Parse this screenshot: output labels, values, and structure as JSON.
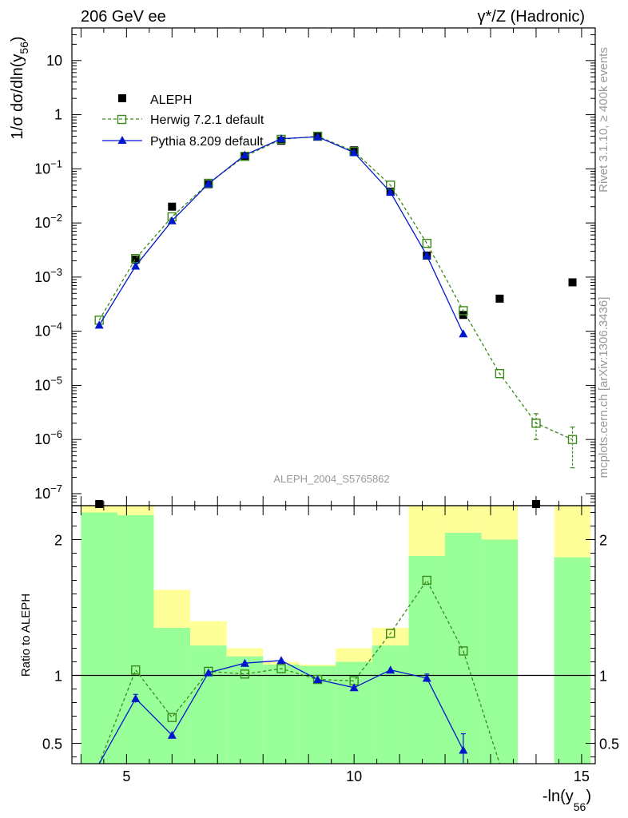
{
  "header": {
    "left_title": "206 GeV ee",
    "right_title": "γ*/Z (Hadronic)"
  },
  "side_labels": {
    "rivet": "Rivet 3.1.10, ≥ 400k events",
    "mcplots": "mcplots.cern.ch [arXiv:1306.3436]"
  },
  "colors": {
    "aleph": "#000000",
    "herwig": "#3a8a1a",
    "pythia": "#0018cc",
    "band_outer": "#ffff99",
    "band_inner": "#99ff99",
    "watermark": "#999999"
  },
  "chart_data": [
    {
      "type": "scatter",
      "panel": "main",
      "ylabel": "1/σ  dσ/dln(y56)",
      "ylabel_parts": {
        "main": "1/σ  dσ/dln(y",
        "sub": "56",
        "close": ")"
      },
      "yscale": "log",
      "ylim": [
        6e-08,
        40
      ],
      "xlim": [
        3.8,
        15.3
      ],
      "y_tick_labels": [
        {
          "value": 10,
          "label": "10"
        },
        {
          "value": 1,
          "label": "1"
        },
        {
          "value": 0.1,
          "base": "10",
          "exp": "−1"
        },
        {
          "value": 0.01,
          "base": "10",
          "exp": "−2"
        },
        {
          "value": 0.001,
          "base": "10",
          "exp": "−3"
        },
        {
          "value": 0.0001,
          "base": "10",
          "exp": "−4"
        },
        {
          "value": 1e-05,
          "base": "10",
          "exp": "−5"
        },
        {
          "value": 1e-06,
          "base": "10",
          "exp": "−6"
        },
        {
          "value": 1e-07,
          "base": "10",
          "exp": "−7"
        }
      ],
      "watermark": "ALEPH_2004_S5765862",
      "legend_position": "top-left",
      "series": [
        {
          "name": "ALEPH",
          "style": "data",
          "x": [
            4.4,
            5.2,
            6.0,
            6.8,
            7.6,
            8.4,
            9.2,
            10.0,
            10.8,
            11.6,
            12.4,
            13.2,
            14.0,
            14.8
          ],
          "y": [
            6e-08,
            0.0021,
            0.02,
            0.052,
            0.17,
            0.33,
            0.4,
            0.22,
            0.038,
            0.0025,
            0.0002,
            0.0004,
            6e-08,
            0.0008
          ]
        },
        {
          "name": "Herwig 7.2.1 default",
          "style": "herwig",
          "x": [
            4.4,
            5.2,
            6.0,
            6.8,
            7.6,
            8.4,
            9.2,
            10.0,
            10.8,
            11.6,
            12.4,
            13.2,
            14.0,
            14.8
          ],
          "y": [
            0.00016,
            0.0022,
            0.013,
            0.054,
            0.17,
            0.35,
            0.4,
            0.21,
            0.05,
            0.0042,
            0.00024,
            1.65e-05,
            2e-06,
            1e-06
          ],
          "err_lo": [
            0,
            0,
            0,
            0,
            0,
            0,
            0,
            0,
            0,
            0,
            0,
            0,
            1e-06,
            7e-07
          ],
          "err_hi": [
            0,
            0,
            0,
            0,
            0,
            0,
            0,
            0,
            0,
            0,
            0,
            0,
            1e-06,
            7e-07
          ]
        },
        {
          "name": "Pythia 8.209 default",
          "style": "pythia",
          "x": [
            4.4,
            5.2,
            6.0,
            6.8,
            7.6,
            8.4,
            9.2,
            10.0,
            10.8,
            11.6,
            12.4
          ],
          "y": [
            0.00013,
            0.0016,
            0.011,
            0.053,
            0.18,
            0.36,
            0.39,
            0.2,
            0.037,
            0.0025,
            9e-05
          ]
        }
      ]
    },
    {
      "type": "line",
      "panel": "ratio",
      "ylabel": "Ratio to ALEPH",
      "xlabel": "-ln(y56)",
      "xlabel_parts": {
        "main": "-ln(y",
        "sub": "56",
        "close": ")"
      },
      "xlim": [
        3.8,
        15.3
      ],
      "ylim": [
        0.35,
        2.25
      ],
      "x_tick_labels": [
        {
          "value": 5,
          "label": "5"
        },
        {
          "value": 10,
          "label": "10"
        },
        {
          "value": 15,
          "label": "15"
        }
      ],
      "y_tick_labels": [
        {
          "value": 2,
          "label": "2"
        },
        {
          "value": 1,
          "label": "1"
        },
        {
          "value": 0.5,
          "label": "0.5"
        }
      ],
      "bands": {
        "edges": [
          4.0,
          4.8,
          5.6,
          6.4,
          7.2,
          8.0,
          8.8,
          9.6,
          10.4,
          11.2,
          12.0,
          12.8,
          13.6,
          14.4,
          15.2
        ],
        "outer_lo": [
          0.35,
          0.35,
          0.43,
          0.79,
          0.89,
          0.94,
          0.94,
          0.88,
          0.78,
          0.35,
          0.35,
          0.35,
          null,
          0.35
        ],
        "outer_hi": [
          2.25,
          2.25,
          1.63,
          1.4,
          1.2,
          1.1,
          1.08,
          1.2,
          1.35,
          2.25,
          2.25,
          2.25,
          null,
          2.25
        ],
        "inner_lo": [
          0.35,
          0.35,
          0.35,
          0.35,
          0.35,
          0.35,
          0.35,
          0.35,
          0.35,
          0.35,
          0.35,
          0.35,
          null,
          0.35
        ],
        "inner_hi": [
          2.2,
          2.18,
          1.35,
          1.22,
          1.14,
          1.08,
          1.07,
          1.1,
          1.22,
          1.88,
          2.05,
          2.0,
          null,
          1.87
        ]
      },
      "series": [
        {
          "name": "Herwig 7.2.1 default",
          "style": "herwig",
          "x": [
            4.4,
            5.2,
            6.0,
            6.8,
            7.6,
            8.4,
            9.2,
            10.0,
            10.8,
            11.6,
            12.4,
            13.2
          ],
          "y": [
            0.3,
            1.04,
            0.69,
            1.03,
            1.01,
            1.05,
            0.97,
            0.96,
            1.31,
            1.7,
            1.18,
            0.05
          ],
          "markers": [
            false,
            true,
            true,
            true,
            true,
            true,
            true,
            true,
            true,
            true,
            true,
            false
          ]
        },
        {
          "name": "Pythia 8.209 default",
          "style": "pythia",
          "x": [
            4.4,
            5.2,
            6.0,
            6.8,
            7.6,
            8.4,
            9.2,
            10.0,
            10.8,
            11.6,
            12.4
          ],
          "y": [
            0.3,
            0.83,
            0.56,
            1.02,
            1.09,
            1.11,
            0.97,
            0.91,
            1.04,
            0.98,
            0.45
          ],
          "markers": [
            false,
            true,
            true,
            true,
            true,
            true,
            true,
            true,
            true,
            true,
            true
          ],
          "err": [
            0,
            0.03,
            0,
            0,
            0,
            0,
            0,
            0,
            0,
            0.03,
            0.12
          ]
        }
      ]
    }
  ]
}
